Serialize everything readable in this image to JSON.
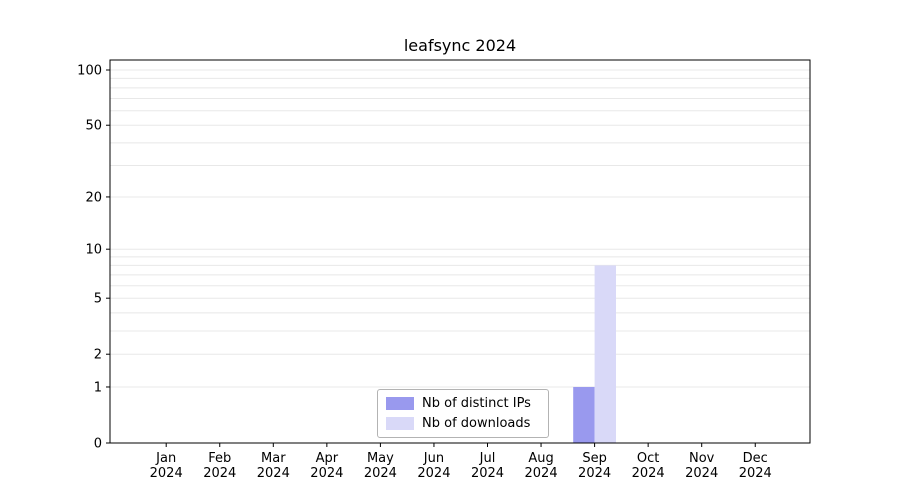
{
  "chart_data": {
    "type": "bar",
    "title": "leafsync 2024",
    "categories": [
      "Jan 2024",
      "Feb 2024",
      "Mar 2024",
      "Apr 2024",
      "May 2024",
      "Jun 2024",
      "Jul 2024",
      "Aug 2024",
      "Sep 2024",
      "Oct 2024",
      "Nov 2024",
      "Dec 2024"
    ],
    "series": [
      {
        "name": "Nb of distinct IPs",
        "color": "#9999ee",
        "values": [
          0,
          0,
          0,
          0,
          0,
          0,
          0,
          0,
          1,
          0,
          0,
          0
        ]
      },
      {
        "name": "Nb of downloads",
        "color": "#d9d9f8",
        "values": [
          0,
          0,
          0,
          0,
          0,
          0,
          0,
          0,
          8,
          0,
          0,
          0
        ]
      }
    ],
    "y_ticks": [
      0,
      1,
      2,
      5,
      10,
      20,
      50,
      100
    ],
    "grid_values": [
      1,
      2,
      3,
      4,
      5,
      6,
      7,
      8,
      9,
      10,
      20,
      30,
      40,
      50,
      60,
      70,
      80,
      90,
      100
    ],
    "scale": "log1p",
    "ylim": [
      0,
      100
    ],
    "xlabel": "",
    "ylabel": "",
    "grid": true,
    "legend_position": "bottom-center"
  }
}
